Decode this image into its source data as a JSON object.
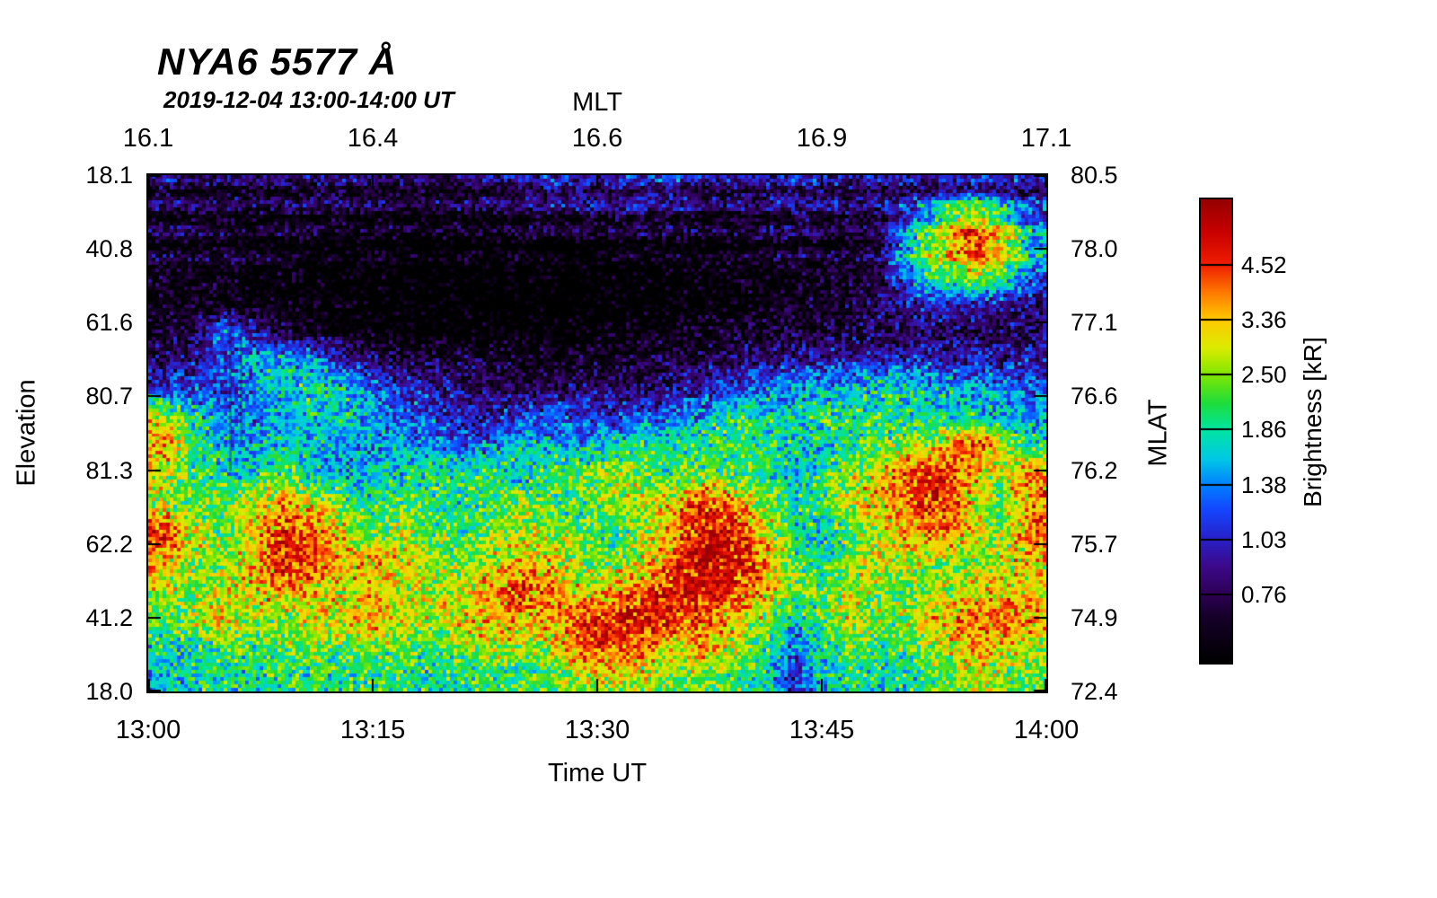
{
  "header": {
    "title": "NYA6 5577 Å",
    "subtitle": "2019-12-04 13:00-14:00 UT"
  },
  "axes": {
    "top": {
      "label": "MLT",
      "ticks": [
        "16.1",
        "16.4",
        "16.6",
        "16.9",
        "17.1"
      ]
    },
    "bottom": {
      "label": "Time UT",
      "ticks": [
        "13:00",
        "13:15",
        "13:30",
        "13:45",
        "14:00"
      ]
    },
    "left": {
      "label": "Elevation",
      "ticks": [
        "18.1",
        "40.8",
        "61.6",
        "80.7",
        "81.3",
        "62.2",
        "41.2",
        "18.0"
      ]
    },
    "right": {
      "label": "MLAT",
      "ticks": [
        "80.5",
        "78.0",
        "77.1",
        "76.6",
        "76.2",
        "75.7",
        "74.9",
        "72.4"
      ]
    }
  },
  "colorbar": {
    "label": "Brightness [kR]",
    "tick_labels": [
      "4.52",
      "3.36",
      "2.50",
      "1.86",
      "1.38",
      "1.03",
      "0.76"
    ],
    "tick_values": [
      4.52,
      3.36,
      2.5,
      1.86,
      1.38,
      1.03,
      0.76
    ]
  },
  "colormap": {
    "v_ref": 0.76,
    "n_ref": 0.147,
    "slope": 0.3993,
    "stops": [
      {
        "p": 0.0,
        "c": "#000000"
      },
      {
        "p": 0.1,
        "c": "#16002a"
      },
      {
        "p": 0.147,
        "c": "#2d0055"
      },
      {
        "p": 0.21,
        "c": "#3c0a8c"
      },
      {
        "p": 0.266,
        "c": "#2820c8"
      },
      {
        "p": 0.33,
        "c": "#1446ff"
      },
      {
        "p": 0.385,
        "c": "#0082ff"
      },
      {
        "p": 0.44,
        "c": "#00c8e6"
      },
      {
        "p": 0.504,
        "c": "#00e6a0"
      },
      {
        "p": 0.56,
        "c": "#1edc3c"
      },
      {
        "p": 0.623,
        "c": "#82e600"
      },
      {
        "p": 0.68,
        "c": "#dceb00"
      },
      {
        "p": 0.742,
        "c": "#ffc800"
      },
      {
        "p": 0.8,
        "c": "#ff7800"
      },
      {
        "p": 0.859,
        "c": "#f01e00"
      },
      {
        "p": 0.93,
        "c": "#c80000"
      },
      {
        "p": 1.0,
        "c": "#960000"
      }
    ]
  },
  "chart_data": {
    "type": "heatmap",
    "title": "NYA6 5577 Å",
    "subtitle": "2019-12-04 13:00-14:00 UT",
    "value_label": "Brightness [kR]",
    "x_axis_bottom": {
      "label": "Time UT",
      "ticks": [
        "13:00",
        "13:15",
        "13:30",
        "13:45",
        "14:00"
      ]
    },
    "x_axis_top": {
      "label": "MLT",
      "ticks": [
        16.1,
        16.4,
        16.6,
        16.9,
        17.1
      ]
    },
    "y_axis_left": {
      "label": "Elevation",
      "ticks_top_to_bottom": [
        18.1,
        40.8,
        61.6,
        80.7,
        81.3,
        62.2,
        41.2,
        18.0
      ]
    },
    "y_axis_right": {
      "label": "MLAT",
      "ticks_top_to_bottom": [
        80.5,
        78.0,
        77.1,
        76.6,
        76.2,
        75.7,
        74.9,
        72.4
      ]
    },
    "colorbar_ticks_kR": [
      4.52,
      3.36,
      2.5,
      1.86,
      1.38,
      1.03,
      0.76
    ],
    "grid_note": "approximate brightness (kR), 18 rows top-to-bottom x 30 cols 13:00-14:00",
    "values": [
      [
        0.75,
        0.7,
        0.72,
        0.7,
        0.68,
        0.7,
        0.72,
        0.7,
        0.68,
        0.7,
        0.72,
        0.75,
        0.8,
        0.9,
        0.9,
        0.85,
        1.0,
        0.95,
        0.8,
        0.75,
        0.85,
        0.9,
        0.85,
        0.8,
        0.85,
        0.8,
        0.85,
        0.9,
        0.9,
        0.85
      ],
      [
        0.68,
        0.65,
        0.66,
        0.65,
        0.64,
        0.65,
        0.66,
        0.64,
        0.62,
        0.6,
        0.62,
        0.64,
        0.66,
        0.7,
        0.72,
        0.7,
        0.75,
        0.72,
        0.68,
        0.65,
        0.7,
        0.75,
        0.72,
        0.7,
        0.75,
        1.2,
        2.2,
        3.0,
        2.2,
        1.2
      ],
      [
        0.62,
        0.6,
        0.6,
        0.58,
        0.56,
        0.55,
        0.54,
        0.52,
        0.5,
        0.5,
        0.5,
        0.5,
        0.52,
        0.52,
        0.5,
        0.52,
        0.55,
        0.55,
        0.55,
        0.55,
        0.6,
        0.65,
        0.62,
        0.6,
        0.8,
        1.8,
        3.0,
        4.8,
        3.5,
        1.6
      ],
      [
        0.6,
        0.58,
        0.56,
        0.55,
        0.52,
        0.5,
        0.5,
        0.48,
        0.47,
        0.46,
        0.46,
        0.46,
        0.47,
        0.48,
        0.47,
        0.48,
        0.5,
        0.5,
        0.52,
        0.52,
        0.55,
        0.6,
        0.6,
        0.6,
        0.7,
        1.4,
        2.2,
        2.6,
        2.0,
        1.2
      ],
      [
        0.58,
        0.56,
        0.55,
        0.54,
        0.52,
        0.5,
        0.48,
        0.46,
        0.45,
        0.45,
        0.44,
        0.45,
        0.45,
        0.46,
        0.45,
        0.46,
        0.48,
        0.5,
        0.5,
        0.52,
        0.55,
        0.6,
        0.62,
        0.65,
        0.8,
        0.9,
        1.0,
        0.95,
        0.9,
        0.85
      ],
      [
        0.62,
        0.7,
        1.3,
        1.0,
        0.7,
        0.6,
        0.55,
        0.52,
        0.5,
        0.48,
        0.47,
        0.48,
        0.5,
        0.5,
        0.5,
        0.52,
        0.55,
        0.55,
        0.58,
        0.6,
        0.62,
        0.65,
        0.68,
        0.7,
        0.72,
        0.75,
        0.72,
        0.7,
        0.72,
        0.75
      ],
      [
        0.8,
        0.9,
        1.2,
        1.5,
        1.6,
        1.4,
        1.0,
        0.8,
        0.7,
        0.72,
        0.7,
        0.65,
        0.62,
        0.6,
        0.6,
        0.62,
        0.65,
        0.7,
        0.75,
        0.8,
        0.85,
        0.9,
        0.95,
        1.0,
        1.0,
        1.05,
        1.0,
        0.95,
        0.9,
        0.95
      ],
      [
        1.0,
        1.1,
        1.2,
        1.4,
        1.7,
        1.9,
        1.7,
        1.4,
        1.1,
        0.9,
        0.8,
        0.75,
        0.72,
        0.75,
        0.8,
        0.85,
        0.8,
        0.85,
        1.0,
        1.1,
        1.3,
        1.4,
        1.5,
        1.6,
        1.8,
        1.7,
        1.6,
        1.5,
        1.4,
        1.2
      ],
      [
        3.0,
        1.8,
        1.4,
        1.3,
        1.5,
        1.7,
        1.8,
        1.4,
        1.2,
        1.2,
        1.0,
        0.95,
        1.1,
        1.3,
        1.1,
        1.0,
        1.2,
        1.3,
        1.6,
        2.0,
        1.9,
        1.7,
        2.0,
        2.1,
        2.0,
        1.9,
        1.8,
        1.8,
        1.7,
        1.5
      ],
      [
        3.5,
        2.0,
        1.6,
        1.5,
        1.8,
        1.6,
        1.4,
        1.4,
        1.5,
        1.3,
        1.2,
        1.4,
        1.8,
        1.6,
        1.4,
        1.8,
        2.0,
        1.9,
        2.0,
        2.1,
        2.0,
        1.7,
        1.6,
        1.8,
        2.2,
        2.5,
        3.0,
        4.5,
        3.0,
        2.0
      ],
      [
        2.8,
        2.2,
        1.8,
        1.8,
        2.2,
        1.6,
        1.6,
        1.7,
        1.8,
        2.0,
        2.0,
        2.0,
        1.6,
        2.2,
        2.2,
        2.6,
        2.4,
        2.0,
        2.4,
        2.0,
        2.0,
        1.6,
        2.0,
        2.6,
        3.2,
        4.6,
        4.8,
        3.4,
        2.4,
        4.0
      ],
      [
        2.6,
        2.2,
        2.4,
        2.8,
        3.4,
        3.0,
        2.4,
        2.0,
        2.2,
        2.0,
        1.8,
        2.2,
        2.4,
        2.2,
        2.0,
        2.4,
        2.8,
        3.2,
        4.6,
        3.6,
        2.6,
        1.8,
        2.2,
        2.8,
        3.2,
        4.4,
        4.6,
        3.0,
        2.2,
        3.6
      ],
      [
        4.5,
        3.0,
        2.2,
        3.0,
        4.6,
        4.2,
        3.0,
        2.2,
        2.6,
        2.2,
        2.0,
        2.4,
        2.8,
        2.6,
        2.2,
        2.0,
        2.6,
        3.4,
        5.2,
        5.0,
        3.2,
        2.0,
        1.6,
        2.2,
        2.6,
        3.4,
        4.2,
        3.0,
        2.4,
        4.2
      ],
      [
        3.4,
        2.6,
        2.4,
        3.2,
        4.8,
        4.4,
        3.4,
        3.4,
        3.0,
        2.6,
        2.4,
        2.8,
        3.2,
        3.0,
        2.6,
        2.4,
        2.8,
        4.0,
        5.4,
        5.2,
        4.0,
        2.2,
        2.0,
        2.6,
        3.0,
        2.6,
        2.4,
        2.6,
        2.8,
        3.0
      ],
      [
        2.8,
        2.4,
        2.8,
        3.0,
        3.6,
        3.2,
        2.8,
        3.2,
        2.8,
        2.6,
        2.8,
        3.8,
        4.6,
        3.6,
        2.8,
        3.4,
        4.2,
        4.8,
        5.2,
        4.6,
        3.4,
        2.4,
        2.2,
        2.6,
        2.4,
        2.2,
        2.6,
        3.0,
        3.2,
        3.0
      ],
      [
        2.2,
        2.6,
        3.0,
        2.6,
        2.4,
        3.0,
        2.6,
        3.8,
        3.0,
        2.6,
        3.0,
        3.6,
        3.2,
        3.4,
        4.6,
        5.0,
        5.2,
        4.6,
        4.2,
        3.2,
        2.6,
        1.6,
        2.2,
        2.8,
        2.4,
        2.6,
        3.4,
        4.0,
        4.2,
        3.6
      ],
      [
        1.8,
        2.0,
        2.2,
        2.0,
        2.2,
        2.4,
        2.2,
        2.4,
        2.2,
        2.0,
        2.4,
        2.6,
        2.4,
        2.8,
        4.2,
        4.6,
        4.0,
        3.0,
        3.4,
        2.8,
        2.2,
        1.2,
        1.8,
        2.2,
        2.0,
        2.2,
        2.8,
        3.4,
        3.2,
        2.6
      ],
      [
        1.6,
        1.8,
        1.9,
        1.8,
        2.0,
        2.0,
        1.9,
        2.0,
        2.0,
        1.9,
        2.0,
        2.1,
        2.0,
        2.2,
        2.6,
        2.8,
        2.6,
        2.4,
        2.4,
        2.2,
        1.8,
        1.0,
        1.6,
        1.9,
        1.8,
        1.9,
        2.2,
        2.6,
        2.4,
        2.2
      ]
    ]
  }
}
